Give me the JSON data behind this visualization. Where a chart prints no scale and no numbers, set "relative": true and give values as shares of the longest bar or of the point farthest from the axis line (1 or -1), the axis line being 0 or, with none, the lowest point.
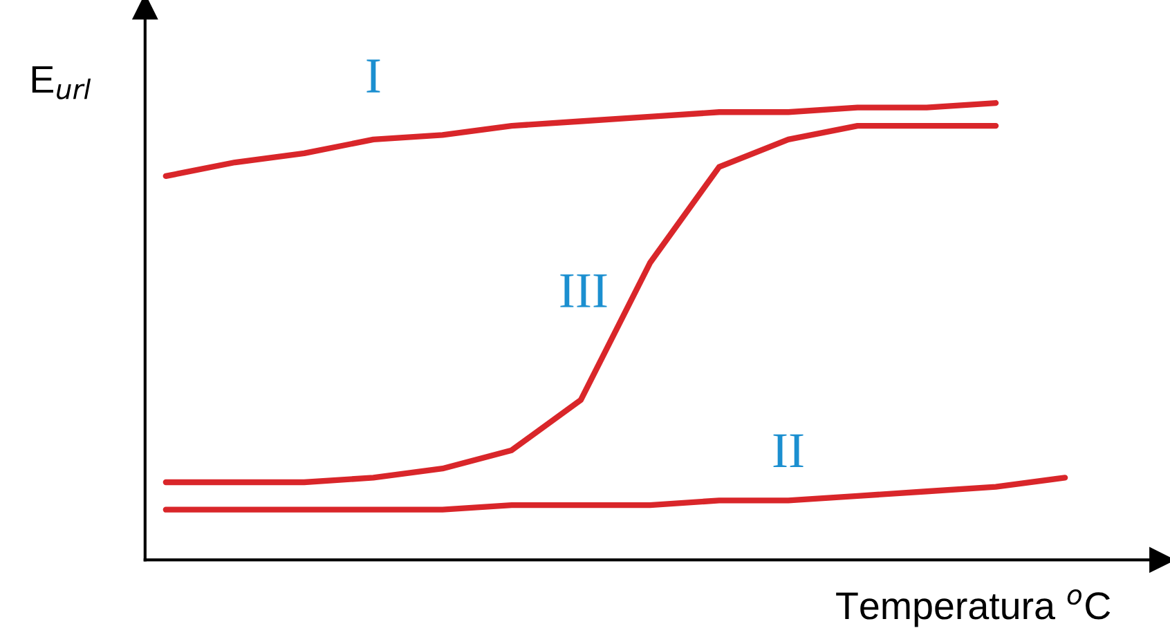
{
  "chart_data": {
    "type": "line",
    "relative": true,
    "xlabel": "Temperatura $^{o}$C",
    "ylabel": "E$_{url}$",
    "categories": [
      null,
      null,
      null,
      null,
      null,
      null,
      null,
      null,
      null,
      null,
      null,
      null,
      null,
      null
    ],
    "series": [
      {
        "name": "I",
        "color": "#d9262a",
        "values": [
          0.84,
          0.87,
          0.89,
          0.92,
          0.93,
          0.95,
          0.96,
          0.97,
          0.98,
          0.98,
          0.99,
          0.99,
          1.0,
          null
        ]
      },
      {
        "name": "II",
        "color": "#d9262a",
        "values": [
          0.11,
          0.11,
          0.11,
          0.11,
          0.11,
          0.12,
          0.12,
          0.12,
          0.13,
          0.13,
          0.14,
          0.15,
          0.16,
          0.18
        ]
      },
      {
        "name": "III",
        "color": "#d9262a",
        "values": [
          0.17,
          0.17,
          0.17,
          0.18,
          0.2,
          0.24,
          0.35,
          0.65,
          0.86,
          0.92,
          0.95,
          0.95,
          0.95,
          null
        ]
      }
    ],
    "legend": false,
    "marker": "none",
    "line_style": "solid"
  }
}
